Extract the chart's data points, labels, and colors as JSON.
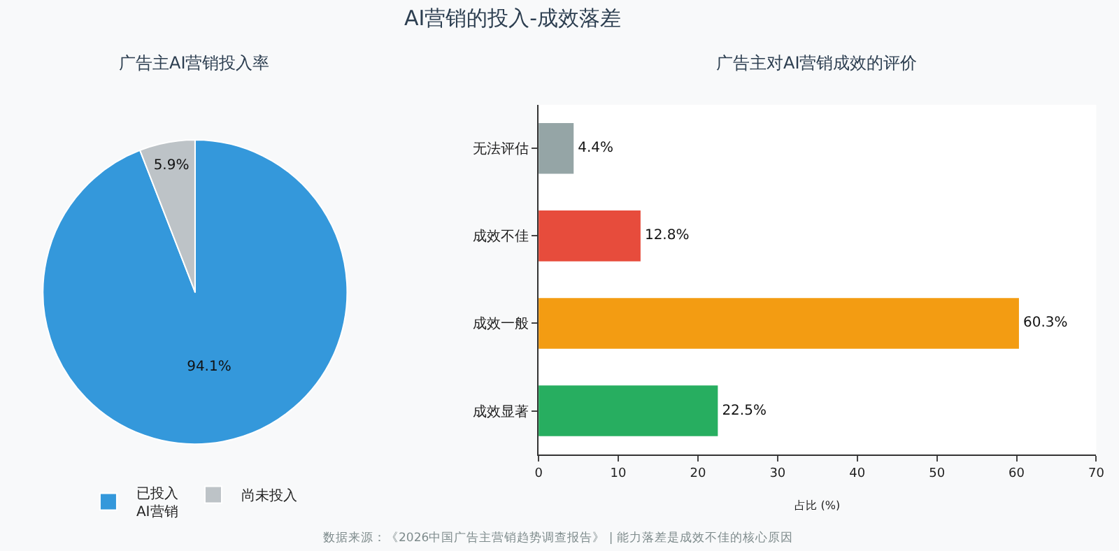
{
  "chart_data": [
    {
      "type": "other",
      "title": "AI营销的投入-成效落差",
      "annotations": [
        "数据来源：《2026中国广告主营销趋势调查报告》 | 能力落差是成效不佳的核心原因"
      ]
    },
    {
      "type": "pie",
      "title": "广告主AI营销投入率",
      "categories": [
        "已投入\nAI营销",
        "尚未投入"
      ],
      "values": [
        94.1,
        5.9
      ],
      "colors": [
        "#3498db",
        "#bdc3c7"
      ],
      "value_labels": [
        "94.1%",
        "5.9%"
      ],
      "legend": "bottom"
    },
    {
      "type": "bar",
      "orientation": "horizontal",
      "title": "广告主对AI营销成效的评价",
      "xlabel": "占比 (%)",
      "categories": [
        "无法评估",
        "成效不佳",
        "成效一般",
        "成效显著"
      ],
      "values": [
        4.4,
        12.8,
        60.3,
        22.5
      ],
      "colors": [
        "#95a5a6",
        "#e74c3c",
        "#f39c12",
        "#27ae60"
      ],
      "value_labels": [
        "4.4%",
        "12.8%",
        "60.3%",
        "22.5%"
      ],
      "xlim": [
        0,
        70
      ],
      "xticks": [
        0,
        10,
        20,
        30,
        40,
        50,
        60,
        70
      ]
    }
  ]
}
